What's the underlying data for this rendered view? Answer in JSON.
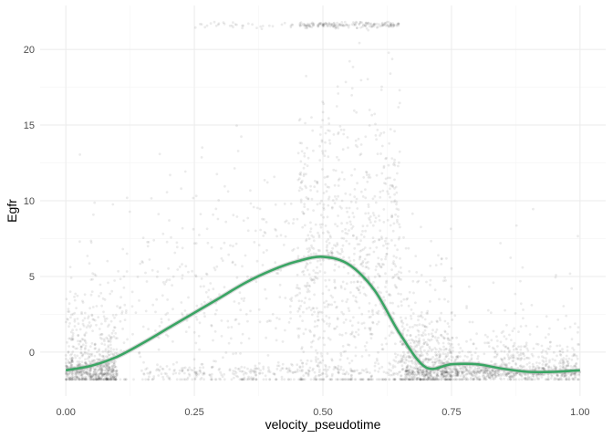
{
  "chart_data": {
    "type": "scatter",
    "title": "",
    "xlabel": "velocity_pseudotime",
    "ylabel": "Egfr",
    "xlim": [
      -0.05,
      1.05
    ],
    "ylim": [
      -2.9,
      22.9
    ],
    "x_ticks": [
      0.0,
      0.25,
      0.5,
      0.75,
      1.0
    ],
    "x_tick_labels": [
      "0.00",
      "0.25",
      "0.50",
      "0.75",
      "1.00"
    ],
    "y_ticks": [
      0,
      5,
      10,
      15,
      20
    ],
    "y_tick_labels": [
      "0",
      "5",
      "10",
      "15",
      "20"
    ],
    "grid": true,
    "legend": "none",
    "point_color": "#000000",
    "point_alpha": 0.08,
    "smooth_color": "#3aa564",
    "smooth_band_color": "#b3b3b3",
    "series": [
      {
        "type": "smooth",
        "x": [
          0.0,
          0.05,
          0.1,
          0.15,
          0.2,
          0.25,
          0.3,
          0.35,
          0.4,
          0.45,
          0.5,
          0.55,
          0.6,
          0.65,
          0.7,
          0.75,
          0.8,
          0.85,
          0.9,
          0.95,
          1.0
        ],
        "y": [
          -1.2,
          -0.9,
          -0.3,
          0.6,
          1.6,
          2.6,
          3.6,
          4.6,
          5.4,
          6.0,
          6.3,
          5.8,
          4.1,
          1.2,
          -1.0,
          -0.8,
          -0.8,
          -1.1,
          -1.3,
          -1.3,
          -1.2
        ]
      }
    ],
    "point_clusters": [
      {
        "x": [
          0.0,
          0.1
        ],
        "y_center": -1.3,
        "y_spread": 0.4,
        "n": 420
      },
      {
        "x": [
          0.0,
          0.1
        ],
        "y_center": 0.0,
        "y_spread": 1.6,
        "n": 260
      },
      {
        "x": [
          0.0,
          0.15
        ],
        "y_center": 2.0,
        "y_spread": 3.5,
        "n": 120
      },
      {
        "x": [
          0.15,
          0.45
        ],
        "y_center": 3.5,
        "y_spread": 4.5,
        "n": 320
      },
      {
        "x": [
          0.45,
          0.65
        ],
        "y_center": 5.5,
        "y_spread": 5.5,
        "n": 900
      },
      {
        "x": [
          0.45,
          0.65
        ],
        "y_center": 21.6,
        "y_spread": 0.1,
        "n": 180
      },
      {
        "x": [
          0.25,
          0.45
        ],
        "y_center": 21.6,
        "y_spread": 0.1,
        "n": 35
      },
      {
        "x": [
          0.15,
          0.65
        ],
        "y_center": -1.3,
        "y_spread": 0.3,
        "n": 260
      },
      {
        "x": [
          0.65,
          0.75
        ],
        "y_center": -0.6,
        "y_spread": 1.5,
        "n": 420
      },
      {
        "x": [
          0.65,
          0.75
        ],
        "y_center": 3.0,
        "y_spread": 3.0,
        "n": 80
      },
      {
        "x": [
          0.66,
          1.0
        ],
        "y_center": -1.35,
        "y_spread": 0.25,
        "n": 650
      },
      {
        "x": [
          0.75,
          1.0
        ],
        "y_center": -0.7,
        "y_spread": 1.0,
        "n": 350
      },
      {
        "x": [
          0.75,
          1.0
        ],
        "y_center": 2.0,
        "y_spread": 2.5,
        "n": 70
      }
    ]
  }
}
